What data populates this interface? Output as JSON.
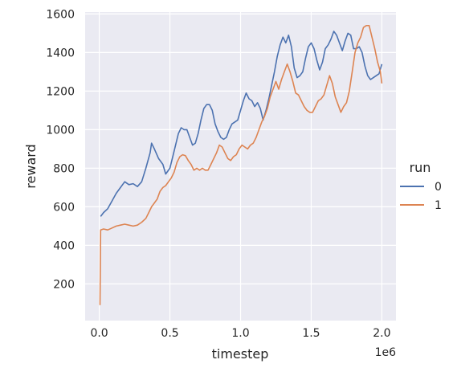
{
  "chart_data": {
    "type": "line",
    "title": "",
    "xlabel": "timestep",
    "ylabel": "reward",
    "x_offset_label": "1e6",
    "xlim": [
      -0.1,
      2.1
    ],
    "ylim": [
      10,
      1610
    ],
    "x_ticks": [
      0.0,
      0.5,
      1.0,
      1.5,
      2.0
    ],
    "x_tick_labels": [
      "0.0",
      "0.5",
      "1.0",
      "1.5",
      "2.0"
    ],
    "y_ticks": [
      200,
      400,
      600,
      800,
      1000,
      1200,
      1400,
      1600
    ],
    "y_tick_labels": [
      "200",
      "400",
      "600",
      "800",
      "1000",
      "1200",
      "1400",
      "1600"
    ],
    "grid": true,
    "legend_title": "run",
    "legend_position": "right",
    "series": [
      {
        "name": "0",
        "color": "#4c72b0",
        "points": [
          [
            0.01,
            550
          ],
          [
            0.03,
            570
          ],
          [
            0.06,
            590
          ],
          [
            0.09,
            630
          ],
          [
            0.12,
            670
          ],
          [
            0.15,
            700
          ],
          [
            0.18,
            730
          ],
          [
            0.21,
            715
          ],
          [
            0.24,
            720
          ],
          [
            0.27,
            705
          ],
          [
            0.3,
            730
          ],
          [
            0.33,
            800
          ],
          [
            0.36,
            880
          ],
          [
            0.37,
            930
          ],
          [
            0.39,
            900
          ],
          [
            0.42,
            850
          ],
          [
            0.45,
            820
          ],
          [
            0.47,
            770
          ],
          [
            0.5,
            800
          ],
          [
            0.52,
            860
          ],
          [
            0.54,
            920
          ],
          [
            0.56,
            980
          ],
          [
            0.58,
            1010
          ],
          [
            0.6,
            1000
          ],
          [
            0.62,
            1000
          ],
          [
            0.64,
            960
          ],
          [
            0.66,
            920
          ],
          [
            0.68,
            930
          ],
          [
            0.7,
            980
          ],
          [
            0.72,
            1050
          ],
          [
            0.74,
            1110
          ],
          [
            0.76,
            1130
          ],
          [
            0.78,
            1130
          ],
          [
            0.8,
            1100
          ],
          [
            0.82,
            1030
          ],
          [
            0.84,
            990
          ],
          [
            0.86,
            960
          ],
          [
            0.88,
            950
          ],
          [
            0.9,
            960
          ],
          [
            0.92,
            1000
          ],
          [
            0.94,
            1030
          ],
          [
            0.96,
            1040
          ],
          [
            0.98,
            1050
          ],
          [
            1.0,
            1100
          ],
          [
            1.02,
            1150
          ],
          [
            1.04,
            1190
          ],
          [
            1.06,
            1160
          ],
          [
            1.08,
            1150
          ],
          [
            1.1,
            1120
          ],
          [
            1.12,
            1140
          ],
          [
            1.14,
            1110
          ],
          [
            1.16,
            1050
          ],
          [
            1.18,
            1100
          ],
          [
            1.2,
            1160
          ],
          [
            1.22,
            1230
          ],
          [
            1.24,
            1300
          ],
          [
            1.26,
            1380
          ],
          [
            1.28,
            1440
          ],
          [
            1.3,
            1480
          ],
          [
            1.32,
            1450
          ],
          [
            1.34,
            1490
          ],
          [
            1.36,
            1430
          ],
          [
            1.38,
            1320
          ],
          [
            1.4,
            1270
          ],
          [
            1.42,
            1280
          ],
          [
            1.44,
            1300
          ],
          [
            1.46,
            1370
          ],
          [
            1.48,
            1430
          ],
          [
            1.5,
            1450
          ],
          [
            1.52,
            1420
          ],
          [
            1.54,
            1360
          ],
          [
            1.56,
            1310
          ],
          [
            1.58,
            1350
          ],
          [
            1.6,
            1420
          ],
          [
            1.62,
            1440
          ],
          [
            1.64,
            1470
          ],
          [
            1.66,
            1510
          ],
          [
            1.68,
            1490
          ],
          [
            1.7,
            1450
          ],
          [
            1.72,
            1410
          ],
          [
            1.74,
            1460
          ],
          [
            1.76,
            1500
          ],
          [
            1.78,
            1490
          ],
          [
            1.8,
            1420
          ],
          [
            1.82,
            1420
          ],
          [
            1.84,
            1430
          ],
          [
            1.86,
            1400
          ],
          [
            1.88,
            1330
          ],
          [
            1.9,
            1280
          ],
          [
            1.92,
            1260
          ],
          [
            1.94,
            1270
          ],
          [
            1.96,
            1280
          ],
          [
            1.98,
            1290
          ],
          [
            2.0,
            1340
          ]
        ]
      },
      {
        "name": "1",
        "color": "#dd8452",
        "points": [
          [
            0.005,
            90
          ],
          [
            0.01,
            480
          ],
          [
            0.03,
            485
          ],
          [
            0.06,
            480
          ],
          [
            0.09,
            490
          ],
          [
            0.12,
            500
          ],
          [
            0.15,
            505
          ],
          [
            0.18,
            510
          ],
          [
            0.21,
            505
          ],
          [
            0.24,
            500
          ],
          [
            0.27,
            505
          ],
          [
            0.3,
            520
          ],
          [
            0.33,
            540
          ],
          [
            0.35,
            570
          ],
          [
            0.37,
            600
          ],
          [
            0.39,
            620
          ],
          [
            0.41,
            640
          ],
          [
            0.43,
            680
          ],
          [
            0.45,
            700
          ],
          [
            0.47,
            710
          ],
          [
            0.49,
            730
          ],
          [
            0.51,
            750
          ],
          [
            0.53,
            780
          ],
          [
            0.55,
            830
          ],
          [
            0.57,
            860
          ],
          [
            0.59,
            870
          ],
          [
            0.61,
            865
          ],
          [
            0.63,
            840
          ],
          [
            0.65,
            820
          ],
          [
            0.67,
            790
          ],
          [
            0.69,
            800
          ],
          [
            0.71,
            790
          ],
          [
            0.73,
            800
          ],
          [
            0.75,
            790
          ],
          [
            0.77,
            790
          ],
          [
            0.79,
            820
          ],
          [
            0.81,
            850
          ],
          [
            0.83,
            880
          ],
          [
            0.85,
            920
          ],
          [
            0.87,
            910
          ],
          [
            0.89,
            880
          ],
          [
            0.91,
            850
          ],
          [
            0.93,
            840
          ],
          [
            0.95,
            860
          ],
          [
            0.97,
            870
          ],
          [
            0.99,
            900
          ],
          [
            1.01,
            920
          ],
          [
            1.03,
            910
          ],
          [
            1.05,
            900
          ],
          [
            1.07,
            920
          ],
          [
            1.09,
            930
          ],
          [
            1.11,
            960
          ],
          [
            1.13,
            1000
          ],
          [
            1.15,
            1040
          ],
          [
            1.17,
            1070
          ],
          [
            1.19,
            1110
          ],
          [
            1.21,
            1170
          ],
          [
            1.23,
            1210
          ],
          [
            1.25,
            1250
          ],
          [
            1.27,
            1210
          ],
          [
            1.29,
            1260
          ],
          [
            1.31,
            1300
          ],
          [
            1.33,
            1340
          ],
          [
            1.35,
            1300
          ],
          [
            1.37,
            1250
          ],
          [
            1.39,
            1190
          ],
          [
            1.41,
            1180
          ],
          [
            1.43,
            1150
          ],
          [
            1.45,
            1120
          ],
          [
            1.47,
            1100
          ],
          [
            1.49,
            1090
          ],
          [
            1.51,
            1090
          ],
          [
            1.53,
            1120
          ],
          [
            1.55,
            1150
          ],
          [
            1.57,
            1160
          ],
          [
            1.59,
            1180
          ],
          [
            1.61,
            1230
          ],
          [
            1.63,
            1280
          ],
          [
            1.65,
            1240
          ],
          [
            1.67,
            1170
          ],
          [
            1.69,
            1130
          ],
          [
            1.71,
            1090
          ],
          [
            1.73,
            1120
          ],
          [
            1.75,
            1140
          ],
          [
            1.77,
            1200
          ],
          [
            1.79,
            1300
          ],
          [
            1.81,
            1400
          ],
          [
            1.83,
            1450
          ],
          [
            1.85,
            1480
          ],
          [
            1.87,
            1530
          ],
          [
            1.89,
            1540
          ],
          [
            1.91,
            1540
          ],
          [
            1.93,
            1480
          ],
          [
            1.95,
            1420
          ],
          [
            1.97,
            1350
          ],
          [
            1.99,
            1300
          ],
          [
            2.0,
            1240
          ]
        ]
      }
    ]
  }
}
